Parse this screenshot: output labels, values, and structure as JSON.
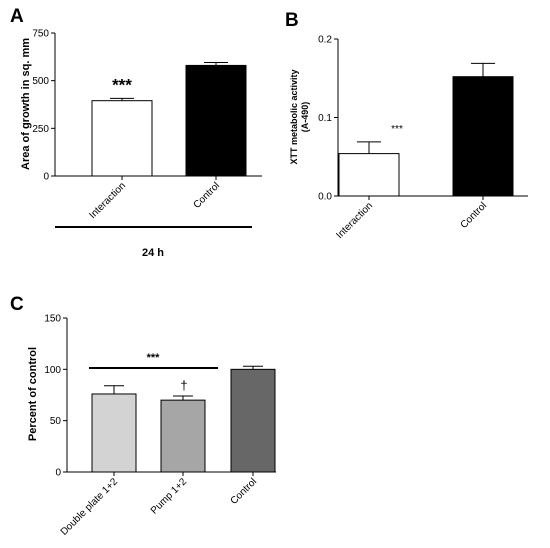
{
  "chart_data": [
    {
      "panel": "A",
      "type": "bar",
      "categories": [
        "Interaction",
        "Control"
      ],
      "values": [
        395,
        580
      ],
      "errors": [
        12,
        15
      ],
      "bar_colors": [
        "#ffffff",
        "#000000"
      ],
      "ylabel": "Area of growth in sq. mm",
      "ylim": [
        0,
        750
      ],
      "yticks": [
        0,
        250,
        500,
        750
      ],
      "annotations": [
        "***"
      ],
      "group_label": "24 h"
    },
    {
      "panel": "B",
      "type": "bar",
      "categories": [
        "Interaction",
        "Control"
      ],
      "values": [
        0.054,
        0.152
      ],
      "errors": [
        0.015,
        0.017
      ],
      "bar_colors": [
        "#ffffff",
        "#000000"
      ],
      "ylabel": "XTT metabolic activity\n(A-490)",
      "ylim": [
        0,
        0.2
      ],
      "yticks": [
        "0.0",
        "0.1",
        "0.2"
      ],
      "annotations": [
        "***"
      ]
    },
    {
      "panel": "C",
      "type": "bar",
      "categories": [
        "Double plate 1+2",
        "Pump 1+2",
        "Control"
      ],
      "values": [
        76,
        70,
        100
      ],
      "errors": [
        8,
        4,
        3
      ],
      "bar_colors": [
        "#d3d3d3",
        "#a6a6a6",
        "#676767"
      ],
      "ylabel": "Percent of control",
      "ylim": [
        0,
        150
      ],
      "yticks": [
        0,
        50,
        100,
        150
      ],
      "annotations": [
        "***",
        "†"
      ]
    }
  ]
}
